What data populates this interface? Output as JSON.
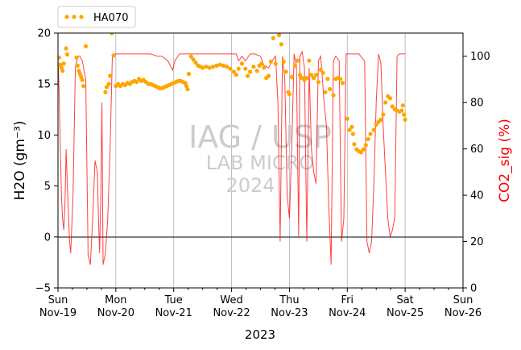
{
  "chart_data": {
    "type": "scatter",
    "legend": {
      "label": "HA070",
      "placement": "top-left, above plot"
    },
    "watermark": {
      "lines": [
        "IAG / USP",
        "LAB MICRO",
        "2024"
      ]
    },
    "x_axis": {
      "ticks": [
        {
          "day": "Sun",
          "date": "Nov-19"
        },
        {
          "day": "Mon",
          "date": "Nov-20"
        },
        {
          "day": "Tue",
          "date": "Nov-21"
        },
        {
          "day": "Wed",
          "date": "Nov-22"
        },
        {
          "day": "Thu",
          "date": "Nov-23"
        },
        {
          "day": "Fri",
          "date": "Nov-24"
        },
        {
          "day": "Sat",
          "date": "Nov-25"
        },
        {
          "day": "Sun",
          "date": "Nov-26"
        }
      ],
      "label": "2023",
      "range": [
        "2023-11-19",
        "2023-11-26"
      ],
      "vertical_grid": true
    },
    "y_left": {
      "label": "H2O (gm⁻³)",
      "range": [
        -5,
        20
      ],
      "ticks": [
        -5,
        0,
        5,
        10,
        15,
        20
      ],
      "reference_line": 0
    },
    "y_right": {
      "label": "CO2_sig (%)",
      "range": [
        0,
        110
      ],
      "ticks": [
        0,
        20,
        40,
        60,
        80,
        100
      ],
      "color": "#ff0000"
    },
    "series": [
      {
        "name": "HA070",
        "axis": "left",
        "color": "#ffa500",
        "points": [
          [
            0.02,
            17.6
          ],
          [
            0.04,
            16.9
          ],
          [
            0.06,
            16.6
          ],
          [
            0.08,
            16.3
          ],
          [
            0.1,
            17.0
          ],
          [
            0.14,
            18.5
          ],
          [
            0.16,
            17.9
          ],
          [
            0.32,
            17.6
          ],
          [
            0.34,
            16.8
          ],
          [
            0.36,
            16.3
          ],
          [
            0.38,
            16.0
          ],
          [
            0.4,
            15.7
          ],
          [
            0.42,
            15.4
          ],
          [
            0.44,
            14.8
          ],
          [
            0.48,
            18.7
          ],
          [
            0.82,
            14.2
          ],
          [
            0.84,
            14.7
          ],
          [
            0.88,
            15.0
          ],
          [
            0.9,
            15.8
          ],
          [
            0.93,
            20.0
          ],
          [
            0.96,
            17.8
          ],
          [
            1.0,
            14.8
          ],
          [
            1.04,
            15.0
          ],
          [
            1.08,
            14.8
          ],
          [
            1.12,
            15.0
          ],
          [
            1.16,
            14.9
          ],
          [
            1.2,
            15.1
          ],
          [
            1.24,
            15.0
          ],
          [
            1.28,
            15.2
          ],
          [
            1.32,
            15.3
          ],
          [
            1.36,
            15.2
          ],
          [
            1.4,
            15.5
          ],
          [
            1.44,
            15.3
          ],
          [
            1.48,
            15.4
          ],
          [
            1.52,
            15.2
          ],
          [
            1.56,
            15.0
          ],
          [
            1.6,
            15.0
          ],
          [
            1.64,
            14.9
          ],
          [
            1.68,
            14.8
          ],
          [
            1.72,
            14.7
          ],
          [
            1.76,
            14.6
          ],
          [
            1.8,
            14.6
          ],
          [
            1.84,
            14.7
          ],
          [
            1.88,
            14.8
          ],
          [
            1.92,
            14.9
          ],
          [
            1.96,
            15.0
          ],
          [
            2.0,
            15.1
          ],
          [
            2.04,
            15.2
          ],
          [
            2.08,
            15.3
          ],
          [
            2.12,
            15.3
          ],
          [
            2.16,
            15.2
          ],
          [
            2.2,
            15.1
          ],
          [
            2.22,
            14.8
          ],
          [
            2.24,
            14.5
          ],
          [
            2.26,
            16.0
          ],
          [
            2.3,
            17.7
          ],
          [
            2.34,
            17.4
          ],
          [
            2.38,
            17.1
          ],
          [
            2.42,
            16.8
          ],
          [
            2.46,
            16.7
          ],
          [
            2.5,
            16.6
          ],
          [
            2.56,
            16.7
          ],
          [
            2.62,
            16.6
          ],
          [
            2.68,
            16.7
          ],
          [
            2.74,
            16.8
          ],
          [
            2.8,
            16.9
          ],
          [
            2.86,
            16.8
          ],
          [
            2.92,
            16.7
          ],
          [
            2.98,
            16.5
          ],
          [
            3.04,
            16.2
          ],
          [
            3.08,
            15.9
          ],
          [
            3.12,
            16.5
          ],
          [
            3.18,
            17.0
          ],
          [
            3.24,
            16.5
          ],
          [
            3.28,
            15.8
          ],
          [
            3.32,
            16.2
          ],
          [
            3.38,
            16.7
          ],
          [
            3.44,
            16.3
          ],
          [
            3.48,
            16.8
          ],
          [
            3.52,
            17.0
          ],
          [
            3.56,
            16.6
          ],
          [
            3.6,
            15.6
          ],
          [
            3.64,
            15.8
          ],
          [
            3.68,
            17.2
          ],
          [
            3.72,
            19.5
          ],
          [
            3.76,
            17.0
          ],
          [
            3.82,
            19.8
          ],
          [
            3.86,
            18.9
          ],
          [
            3.9,
            17.2
          ],
          [
            3.94,
            16.2
          ],
          [
            3.98,
            14.2
          ],
          [
            4.0,
            14.0
          ],
          [
            4.04,
            15.7
          ],
          [
            4.1,
            16.8
          ],
          [
            4.14,
            17.3
          ],
          [
            4.18,
            15.9
          ],
          [
            4.22,
            15.6
          ],
          [
            4.26,
            15.4
          ],
          [
            4.3,
            15.6
          ],
          [
            4.34,
            17.3
          ],
          [
            4.38,
            15.9
          ],
          [
            4.42,
            15.6
          ],
          [
            4.46,
            15.9
          ],
          [
            4.5,
            15.2
          ],
          [
            4.54,
            16.4
          ],
          [
            4.58,
            16.1
          ],
          [
            4.62,
            14.2
          ],
          [
            4.66,
            15.5
          ],
          [
            4.7,
            14.5
          ],
          [
            4.76,
            13.9
          ],
          [
            4.8,
            15.5
          ],
          [
            4.84,
            15.6
          ],
          [
            4.88,
            15.5
          ],
          [
            4.92,
            15.1
          ],
          [
            5.0,
            11.6
          ],
          [
            5.04,
            10.5
          ],
          [
            5.08,
            10.8
          ],
          [
            5.1,
            10.1
          ],
          [
            5.12,
            9.1
          ],
          [
            5.16,
            8.6
          ],
          [
            5.2,
            8.4
          ],
          [
            5.24,
            8.3
          ],
          [
            5.28,
            8.6
          ],
          [
            5.32,
            9.0
          ],
          [
            5.36,
            9.6
          ],
          [
            5.4,
            10.1
          ],
          [
            5.46,
            10.5
          ],
          [
            5.5,
            11.0
          ],
          [
            5.54,
            11.3
          ],
          [
            5.58,
            11.5
          ],
          [
            5.62,
            12.0
          ],
          [
            5.66,
            13.2
          ],
          [
            5.7,
            13.8
          ],
          [
            5.74,
            13.6
          ],
          [
            5.78,
            12.8
          ],
          [
            5.82,
            12.5
          ],
          [
            5.86,
            12.4
          ],
          [
            5.9,
            12.3
          ],
          [
            5.94,
            12.4
          ],
          [
            5.96,
            12.9
          ],
          [
            5.98,
            12.0
          ],
          [
            6.0,
            11.5
          ]
        ]
      },
      {
        "name": "CO2_sig",
        "axis": "right",
        "color": "#ff0000",
        "points": [
          [
            0.0,
            100
          ],
          [
            0.02,
            85
          ],
          [
            0.04,
            60
          ],
          [
            0.06,
            40
          ],
          [
            0.08,
            30
          ],
          [
            0.1,
            25
          ],
          [
            0.12,
            35
          ],
          [
            0.14,
            60
          ],
          [
            0.16,
            45
          ],
          [
            0.2,
            20
          ],
          [
            0.22,
            15
          ],
          [
            0.26,
            40
          ],
          [
            0.3,
            95
          ],
          [
            0.34,
            100
          ],
          [
            0.38,
            100
          ],
          [
            0.42,
            98
          ],
          [
            0.48,
            90
          ],
          [
            0.52,
            14
          ],
          [
            0.56,
            10
          ],
          [
            0.6,
            30
          ],
          [
            0.64,
            55
          ],
          [
            0.68,
            50
          ],
          [
            0.7,
            30
          ],
          [
            0.72,
            15
          ],
          [
            0.74,
            40
          ],
          [
            0.76,
            80
          ],
          [
            0.78,
            10
          ],
          [
            0.82,
            15
          ],
          [
            0.86,
            30
          ],
          [
            0.9,
            60
          ],
          [
            0.94,
            100
          ],
          [
            0.98,
            101
          ],
          [
            1.2,
            101
          ],
          [
            1.4,
            101
          ],
          [
            1.6,
            101
          ],
          [
            1.72,
            100
          ],
          [
            1.8,
            100
          ],
          [
            1.9,
            98
          ],
          [
            1.98,
            94
          ],
          [
            2.02,
            98
          ],
          [
            2.1,
            101
          ],
          [
            2.4,
            101
          ],
          [
            2.8,
            101
          ],
          [
            3.08,
            101
          ],
          [
            3.12,
            98
          ],
          [
            3.18,
            100
          ],
          [
            3.24,
            98
          ],
          [
            3.32,
            101
          ],
          [
            3.4,
            101
          ],
          [
            3.5,
            100
          ],
          [
            3.56,
            96
          ],
          [
            3.64,
            95
          ],
          [
            3.7,
            98
          ],
          [
            3.76,
            100
          ],
          [
            3.8,
            80
          ],
          [
            3.84,
            20
          ],
          [
            3.88,
            100
          ],
          [
            3.92,
            90
          ],
          [
            3.96,
            40
          ],
          [
            4.0,
            30
          ],
          [
            4.04,
            60
          ],
          [
            4.08,
            101
          ],
          [
            4.12,
            96
          ],
          [
            4.16,
            22
          ],
          [
            4.18,
            100
          ],
          [
            4.22,
            102
          ],
          [
            4.26,
            95
          ],
          [
            4.3,
            20
          ],
          [
            4.34,
            95
          ],
          [
            4.38,
            60
          ],
          [
            4.42,
            50
          ],
          [
            4.46,
            45
          ],
          [
            4.5,
            98
          ],
          [
            4.54,
            100
          ],
          [
            4.6,
            80
          ],
          [
            4.64,
            70
          ],
          [
            4.68,
            35
          ],
          [
            4.72,
            10
          ],
          [
            4.76,
            98
          ],
          [
            4.8,
            100
          ],
          [
            4.86,
            98
          ],
          [
            4.9,
            20
          ],
          [
            4.94,
            30
          ],
          [
            4.98,
            101
          ],
          [
            5.2,
            101
          ],
          [
            5.3,
            98
          ],
          [
            5.34,
            20
          ],
          [
            5.38,
            15
          ],
          [
            5.42,
            20
          ],
          [
            5.46,
            45
          ],
          [
            5.5,
            80
          ],
          [
            5.54,
            101
          ],
          [
            5.58,
            97
          ],
          [
            5.62,
            70
          ],
          [
            5.66,
            50
          ],
          [
            5.7,
            30
          ],
          [
            5.74,
            22
          ],
          [
            5.78,
            25
          ],
          [
            5.82,
            30
          ],
          [
            5.86,
            100
          ],
          [
            5.9,
            101
          ],
          [
            6.0,
            101
          ]
        ]
      }
    ]
  }
}
